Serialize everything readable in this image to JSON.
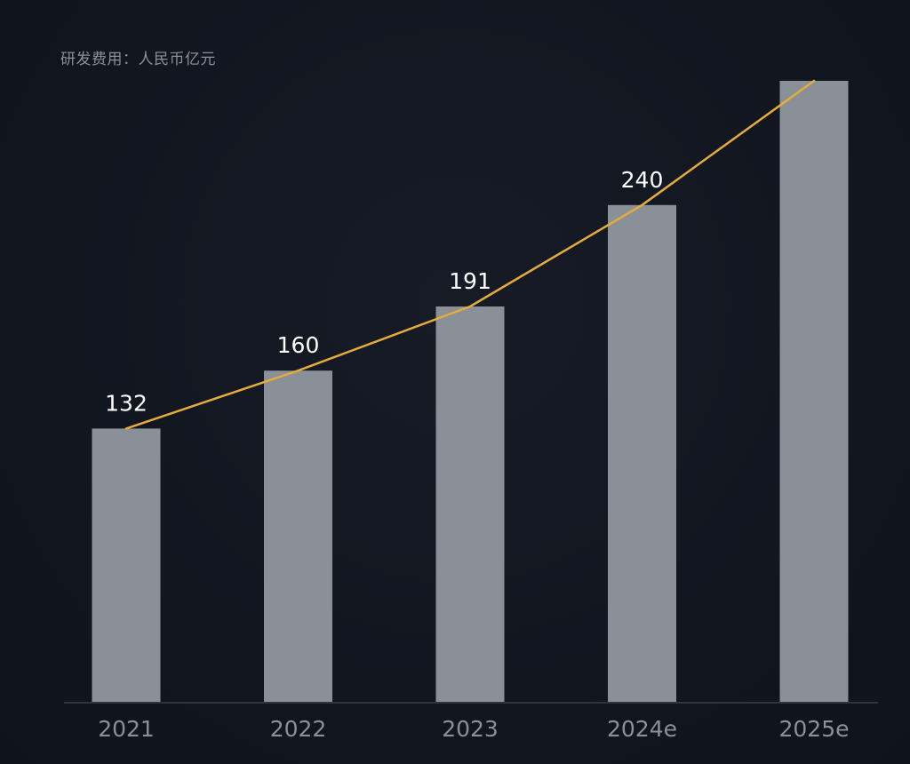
{
  "chart_data": {
    "type": "bar",
    "title": "",
    "unit_label": "研发费用：人民币亿元",
    "xlabel": "",
    "ylabel": "",
    "categories": [
      "2021",
      "2022",
      "2023",
      "2024e",
      "2025e"
    ],
    "values": [
      132,
      160,
      191,
      240,
      300
    ],
    "data_labels": [
      "132",
      "160",
      "191",
      "240",
      ""
    ],
    "ylim": [
      0,
      300
    ],
    "overlay_line": true,
    "grid": false,
    "legend": "none",
    "colors": {
      "bar": "#8a9098",
      "line": "#e6ac3a",
      "axis": "#3a3f49",
      "background": "#121620"
    }
  }
}
